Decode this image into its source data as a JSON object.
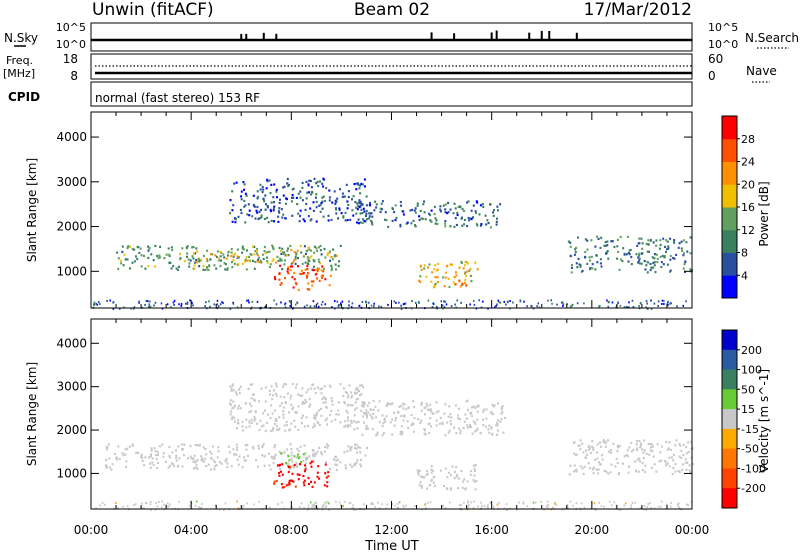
{
  "header": {
    "station": "Unwin (fitACF)",
    "beam": "Beam 02",
    "date": "17/Mar/2012"
  },
  "noise_panel": {
    "left_label": "N.Sky",
    "right_label": "N.Search",
    "left_ticks": [
      "10^5",
      "10^0"
    ],
    "right_ticks": [
      "10^5",
      "10^0"
    ]
  },
  "freq_panel": {
    "left_label_1": "Freq.",
    "left_label_2": "[MHz]",
    "right_label": "Nave",
    "left_ticks": [
      "18",
      "8"
    ],
    "right_ticks": [
      "60",
      "0"
    ]
  },
  "cpid_panel": {
    "label": "CPID",
    "text": "normal (fast stereo) 153 RF"
  },
  "colors": {
    "power_scale": [
      "#0000ff",
      "#2850a0",
      "#3a8060",
      "#5fa060",
      "#f0c000",
      "#ff9000",
      "#ff5000",
      "#ff0000"
    ],
    "velocity_scale": [
      "#0000cc",
      "#2a5aa0",
      "#3a8060",
      "#66cc33",
      "#c8c8c8",
      "#ffaa00",
      "#ff7700",
      "#ff4400",
      "#ff0000"
    ]
  },
  "chart_data": [
    {
      "type": "heatmap",
      "title": "",
      "xlabel": "",
      "ylabel": "Slant Range [km]",
      "x_ticks": [
        "00:00",
        "04:00",
        "08:00",
        "12:00",
        "16:00",
        "20:00",
        "00:00"
      ],
      "y_ticks": [
        "1000",
        "2000",
        "3000",
        "4000"
      ],
      "xlim": [
        0,
        24
      ],
      "ylim": [
        180,
        4560
      ],
      "colorbar": {
        "label": "Power [dB]",
        "ticks": [
          "4",
          "8",
          "12",
          "16",
          "20",
          "24",
          "28"
        ],
        "range": [
          0,
          32
        ]
      },
      "regions": [
        {
          "x": [
            1.0,
            10.0
          ],
          "y": [
            1050,
            1600
          ],
          "value": 12
        },
        {
          "x": [
            4.0,
            9.8
          ],
          "y": [
            1200,
            1500
          ],
          "value": 17
        },
        {
          "x": [
            7.3,
            9.7
          ],
          "y": [
            600,
            1150
          ],
          "value": 26
        },
        {
          "x": [
            5.5,
            11.0
          ],
          "y": [
            2100,
            3100
          ],
          "value": 6
        },
        {
          "x": [
            10.5,
            16.3
          ],
          "y": [
            2000,
            2600
          ],
          "value": 8
        },
        {
          "x": [
            13.0,
            15.4
          ],
          "y": [
            650,
            1250
          ],
          "value": 18
        },
        {
          "x": [
            14.2,
            15.0
          ],
          "y": [
            700,
            850
          ],
          "value": 27
        },
        {
          "x": [
            19.0,
            24.0
          ],
          "y": [
            1000,
            1800
          ],
          "value": 9
        }
      ]
    },
    {
      "type": "heatmap",
      "title": "",
      "xlabel": "Time UT",
      "ylabel": "Slant Range [km]",
      "x_ticks": [
        "00:00",
        "04:00",
        "08:00",
        "12:00",
        "16:00",
        "20:00",
        "00:00"
      ],
      "y_ticks": [
        "1000",
        "2000",
        "3000",
        "4000"
      ],
      "xlim": [
        0,
        24
      ],
      "ylim": [
        180,
        4560
      ],
      "colorbar": {
        "label": "Velocity [m s^-1]",
        "ticks": [
          "200",
          "100",
          "50",
          "15",
          "-15",
          "-50",
          "-100",
          "-200"
        ],
        "range": [
          -250,
          250
        ]
      },
      "regions": [
        {
          "x": [
            0.5,
            11.0
          ],
          "y": [
            1100,
            1700
          ],
          "value": 0
        },
        {
          "x": [
            5.5,
            11.0
          ],
          "y": [
            2000,
            3100
          ],
          "value": 0
        },
        {
          "x": [
            10.5,
            16.5
          ],
          "y": [
            1900,
            2700
          ],
          "value": 0
        },
        {
          "x": [
            7.2,
            9.5
          ],
          "y": [
            700,
            1300
          ],
          "value": -200
        },
        {
          "x": [
            7.5,
            8.5
          ],
          "y": [
            1250,
            1500
          ],
          "value": 40
        },
        {
          "x": [
            13.0,
            15.4
          ],
          "y": [
            650,
            1250
          ],
          "value": 0
        },
        {
          "x": [
            19.0,
            24.0
          ],
          "y": [
            1000,
            1800
          ],
          "value": 0
        }
      ]
    }
  ]
}
